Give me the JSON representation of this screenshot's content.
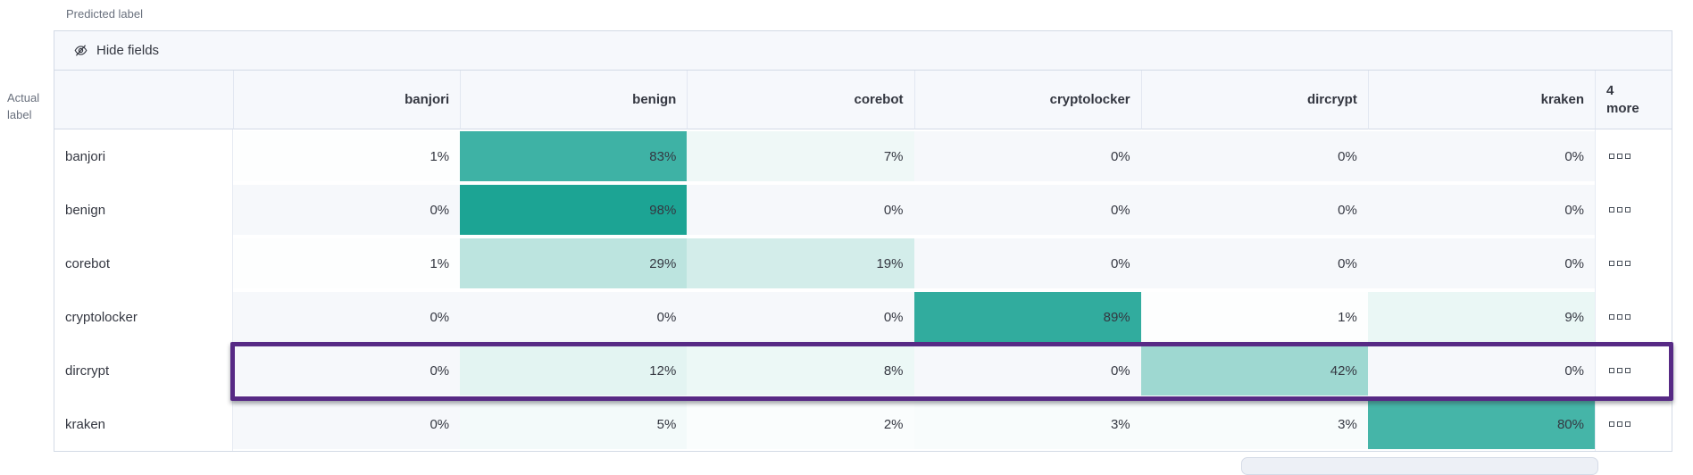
{
  "axis": {
    "predicted_label": "Predicted label",
    "actual_label_line1": "Actual",
    "actual_label_line2": "label"
  },
  "toolbar": {
    "hide_fields_label": "Hide fields",
    "icon": "eye-closed-icon"
  },
  "chart_data": {
    "type": "heatmap",
    "columns": [
      "banjori",
      "benign",
      "corebot",
      "cryptolocker",
      "dircrypt",
      "kraken"
    ],
    "extra_columns_header": "4 more",
    "rows": [
      {
        "label": "banjori",
        "values": [
          1,
          83,
          7,
          0,
          0,
          0
        ]
      },
      {
        "label": "benign",
        "values": [
          0,
          98,
          0,
          0,
          0,
          0
        ]
      },
      {
        "label": "corebot",
        "values": [
          1,
          29,
          19,
          0,
          0,
          0
        ]
      },
      {
        "label": "cryptolocker",
        "values": [
          0,
          0,
          0,
          89,
          1,
          9
        ]
      },
      {
        "label": "dircrypt",
        "values": [
          0,
          12,
          8,
          0,
          42,
          0
        ]
      },
      {
        "label": "kraken",
        "values": [
          0,
          5,
          2,
          3,
          3,
          80
        ]
      }
    ],
    "value_suffix": "%",
    "highlighted_row": "dircrypt",
    "row_actions_icon": "boxes-horizontal-icon",
    "colors": {
      "heat_max": "#17a292",
      "empty_cell": "#f6f8fb",
      "highlight_border": "#572a85"
    }
  }
}
